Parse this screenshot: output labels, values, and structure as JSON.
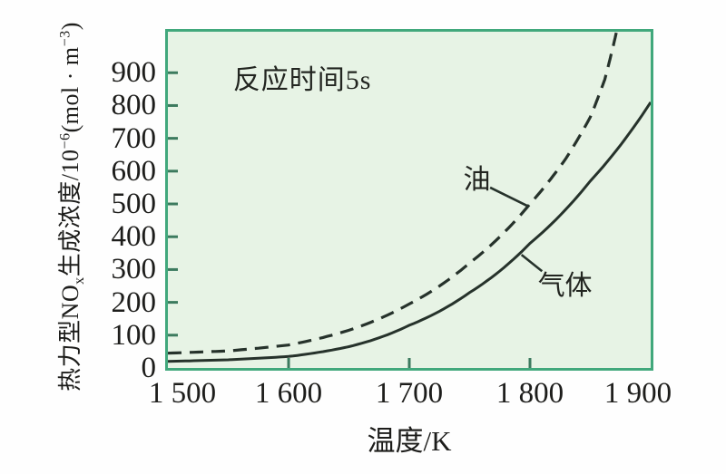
{
  "chart_data": {
    "type": "line",
    "title": "",
    "annotation": "反应时间5s",
    "xlabel": "温度/K",
    "ylabel": "热力型NOx生成浓度/10−6(mol · m−3)",
    "ylabel_parts": {
      "base1": "热力型NO",
      "sub1": "x",
      "base2": "生成浓度/10",
      "sup1": "−6",
      "base3": "(mol · m",
      "sup2": "−3",
      "base4": ")"
    },
    "xlim": [
      1500,
      1900
    ],
    "ylim": [
      0,
      1025
    ],
    "grid": false,
    "legend_position": "inline-curve-labels",
    "xticks": {
      "values": [
        1500,
        1600,
        1700,
        1800,
        1900
      ],
      "labels": [
        "1 500",
        "1 600",
        "1 700",
        "1 800",
        "1 900"
      ]
    },
    "yticks": {
      "values": [
        0,
        100,
        200,
        300,
        400,
        500,
        600,
        700,
        800,
        900
      ],
      "labels": [
        "0",
        "100",
        "200",
        "300",
        "400",
        "500",
        "600",
        "700",
        "800",
        "900"
      ]
    },
    "colors": {
      "plot_background": "#e7f3e5",
      "frame": "#41a87c",
      "tick": "#3c7a5e",
      "curve": "#26322b",
      "text": "#1d1d1b"
    },
    "annotation_at": [
      1554,
      888
    ],
    "series": [
      {
        "id": "oil",
        "name": "油",
        "style": "dashed",
        "x": [
          1500,
          1550,
          1600,
          1650,
          1700,
          1750,
          1800,
          1830,
          1850,
          1862,
          1872
        ],
        "y": [
          45,
          52,
          70,
          115,
          195,
          320,
          500,
          640,
          765,
          880,
          1030
        ],
        "label_at": [
          1756,
          583
        ],
        "leader": [
          [
            1767,
            550
          ],
          [
            1799,
            492
          ]
        ]
      },
      {
        "id": "gas",
        "name": "气体",
        "style": "solid",
        "x": [
          1500,
          1550,
          1600,
          1650,
          1700,
          1750,
          1800,
          1850,
          1900
        ],
        "y": [
          20,
          25,
          35,
          65,
          130,
          230,
          380,
          570,
          810
        ],
        "label_at": [
          1829,
          260
        ],
        "leader": [
          [
            1793,
            345
          ],
          [
            1810,
            295
          ]
        ]
      }
    ]
  }
}
